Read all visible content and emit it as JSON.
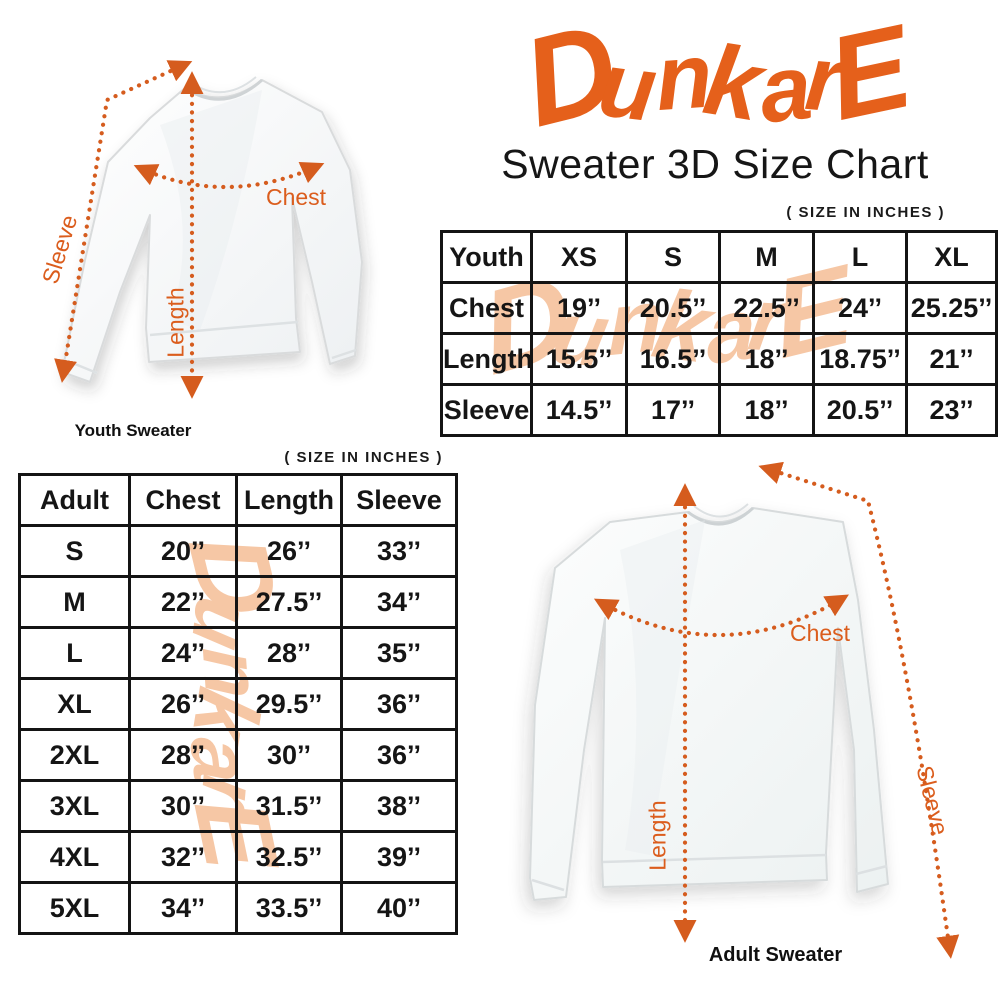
{
  "brand": {
    "logo_text": "DunkarE",
    "subtitle": "Sweater 3D Size Chart"
  },
  "watermark_text": "DunkarE",
  "size_note": "( SIZE IN INCHES )",
  "colors": {
    "accent_orange": "#E5601B",
    "watermark_peach": "#F6C7A5",
    "table_border": "#141414"
  },
  "youth": {
    "caption": "Youth Sweater",
    "labels": {
      "chest": "Chest",
      "length": "Length",
      "sleeve": "Sleeve"
    },
    "table": {
      "header": [
        "Youth",
        "XS",
        "S",
        "M",
        "L",
        "XL"
      ],
      "rows": [
        [
          "Chest",
          "19’’",
          "20.5’’",
          "22.5’’",
          "24’’",
          "25.25’’"
        ],
        [
          "Length",
          "15.5’’",
          "16.5’’",
          "18’’",
          "18.75’’",
          "21’’"
        ],
        [
          "Sleeve",
          "14.5’’",
          "17’’",
          "18’’",
          "20.5’’",
          "23’’"
        ]
      ]
    }
  },
  "adult": {
    "caption": "Adult Sweater",
    "labels": {
      "chest": "Chest",
      "length": "Length",
      "sleeve": "Sleeve"
    },
    "table": {
      "header": [
        "Adult",
        "Chest",
        "Length",
        "Sleeve"
      ],
      "rows": [
        [
          "S",
          "20’’",
          "26’’",
          "33’’"
        ],
        [
          "M",
          "22’’",
          "27.5’’",
          "34’’"
        ],
        [
          "L",
          "24’’",
          "28’’",
          "35’’"
        ],
        [
          "XL",
          "26’’",
          "29.5’’",
          "36’’"
        ],
        [
          "2XL",
          "28’’",
          "30’’",
          "36’’"
        ],
        [
          "3XL",
          "30’’",
          "31.5’’",
          "38’’"
        ],
        [
          "4XL",
          "32’’",
          "32.5’’",
          "39’’"
        ],
        [
          "5XL",
          "34’’",
          "33.5’’",
          "40’’"
        ]
      ]
    }
  },
  "chart_data": [
    {
      "type": "table",
      "title": "Youth Sweater Size Chart",
      "units": "inches",
      "columns": [
        "Youth",
        "XS",
        "S",
        "M",
        "L",
        "XL"
      ],
      "rows": [
        [
          "Chest",
          19,
          20.5,
          22.5,
          24,
          25.25
        ],
        [
          "Length",
          15.5,
          16.5,
          18,
          18.75,
          21
        ],
        [
          "Sleeve",
          14.5,
          17,
          18,
          20.5,
          23
        ]
      ]
    },
    {
      "type": "table",
      "title": "Adult Sweater Size Chart",
      "units": "inches",
      "columns": [
        "Adult",
        "Chest",
        "Length",
        "Sleeve"
      ],
      "rows": [
        [
          "S",
          20,
          26,
          33
        ],
        [
          "M",
          22,
          27.5,
          34
        ],
        [
          "L",
          24,
          28,
          35
        ],
        [
          "XL",
          26,
          29.5,
          36
        ],
        [
          "2XL",
          28,
          30,
          36
        ],
        [
          "3XL",
          30,
          31.5,
          38
        ],
        [
          "4XL",
          32,
          32.5,
          39
        ],
        [
          "5XL",
          34,
          33.5,
          40
        ]
      ]
    }
  ]
}
